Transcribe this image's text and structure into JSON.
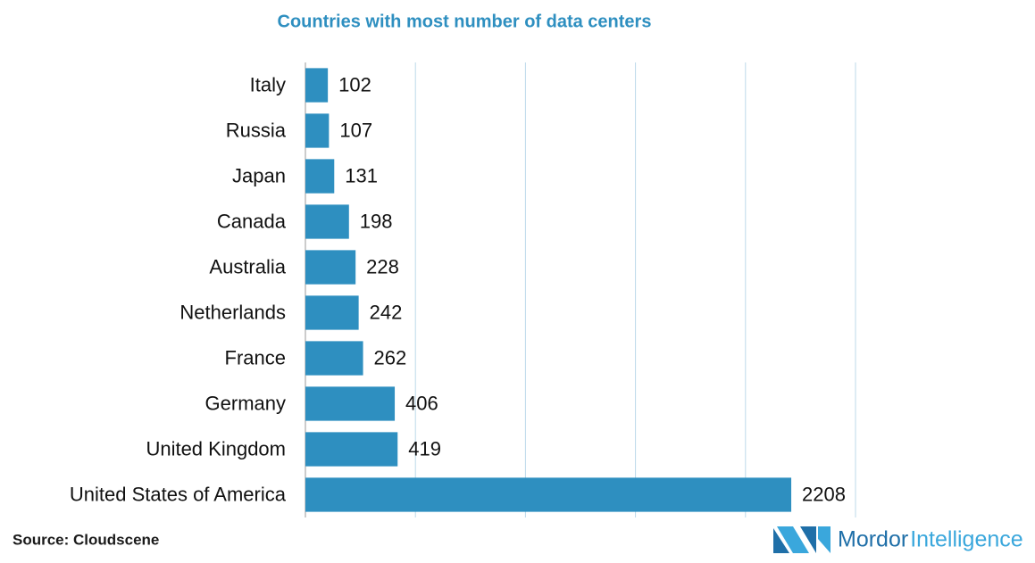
{
  "chart_data": {
    "type": "bar",
    "orientation": "horizontal",
    "title": "Countries with most number of data centers",
    "categories": [
      "Italy",
      "Russia",
      "Japan",
      "Canada",
      "Australia",
      "Netherlands",
      "France",
      "Germany",
      "United Kingdom",
      "United States of America"
    ],
    "values": [
      102,
      107,
      131,
      198,
      228,
      242,
      262,
      406,
      419,
      2208
    ],
    "color": "#2e8fc0",
    "xlim": [
      0,
      2500
    ],
    "xticks": [
      0,
      500,
      1000,
      1500,
      2000,
      2500
    ],
    "grid": true,
    "source": "Source: Cloudscene",
    "brand": [
      "Mordor",
      "Intelligence"
    ]
  }
}
